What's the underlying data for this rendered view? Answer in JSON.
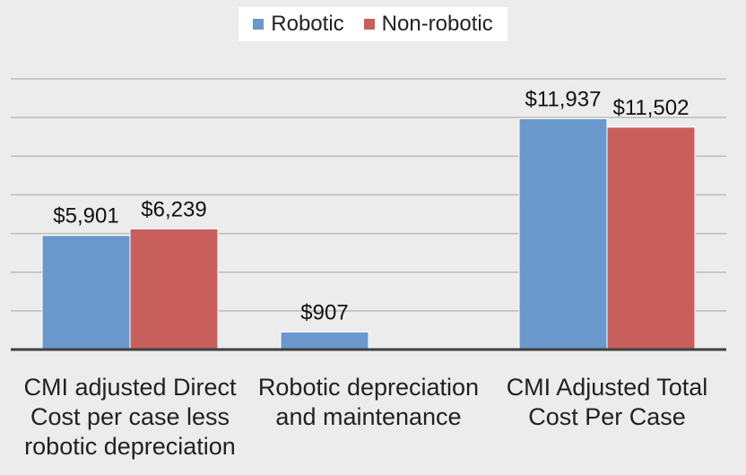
{
  "legend": {
    "items": [
      {
        "name": "Robotic",
        "color": "#6a97cc"
      },
      {
        "name": "Non-robotic",
        "color": "#c95f5c"
      }
    ]
  },
  "chart_data": {
    "type": "bar",
    "title": "",
    "xlabel": "",
    "ylabel": "",
    "ylim": [
      0,
      14000
    ],
    "grid": true,
    "legend_position": "top-center",
    "categories": [
      "CMI adjusted Direct\nCost per case less\nrobotic depreciation",
      "Robotic depreciation\nand maintenance",
      "CMI Adjusted Total\nCost Per Case"
    ],
    "series": [
      {
        "name": "Robotic",
        "color": "#6a97cc",
        "values": [
          5901,
          907,
          11937
        ],
        "labels": [
          "$5,901",
          "$907",
          "$11,937"
        ]
      },
      {
        "name": "Non-robotic",
        "color": "#c95f5c",
        "values": [
          6239,
          null,
          11502
        ],
        "labels": [
          "$6,239",
          "",
          "$11,502"
        ]
      }
    ]
  }
}
